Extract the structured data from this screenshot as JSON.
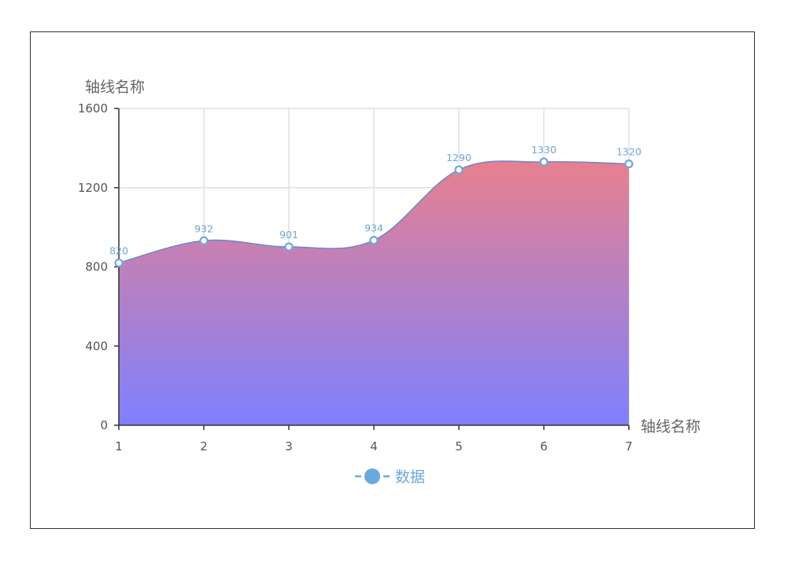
{
  "chart_data": {
    "type": "area",
    "x": [
      1,
      2,
      3,
      4,
      5,
      6,
      7
    ],
    "series": [
      {
        "name": "数据",
        "values": [
          820,
          932,
          901,
          934,
          1290,
          1330,
          1320
        ]
      }
    ],
    "ylim": [
      0,
      1600
    ],
    "yticks": [
      0,
      400,
      800,
      1200,
      1600
    ],
    "xlabel": "轴线名称",
    "ylabel": "轴线名称",
    "grid": true,
    "smooth": true,
    "legend_position": "bottom-center",
    "colors": {
      "line": "#6f86c8",
      "marker_stroke": "#6fa6dc",
      "fill_top": "#e8808f",
      "fill_bottom": "#7f80ff",
      "legend": "#6ca7e0",
      "grid": "#d9d9d9",
      "axis": "#333333"
    }
  }
}
